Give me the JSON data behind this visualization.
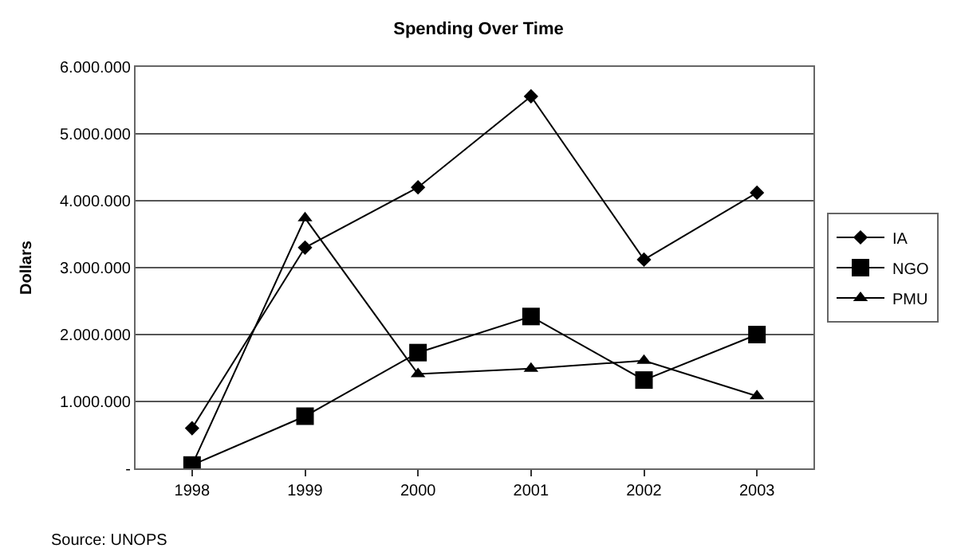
{
  "chart_data": {
    "type": "line",
    "title": "Spending Over Time",
    "ylabel": "Dollars",
    "categories": [
      "1998",
      "1999",
      "2000",
      "2001",
      "2002",
      "2003"
    ],
    "series": [
      {
        "name": "IA",
        "color": "#000000",
        "marker": "diamond",
        "values": [
          600000,
          3300000,
          4200000,
          5560000,
          3120000,
          4120000
        ]
      },
      {
        "name": "NGO",
        "color": "#000000",
        "marker": "square",
        "values": [
          50000,
          780000,
          1730000,
          2270000,
          1320000,
          2000000
        ]
      },
      {
        "name": "PMU",
        "color": "#000000",
        "marker": "triangle",
        "values": [
          50000,
          3740000,
          1410000,
          1490000,
          1610000,
          1080000
        ]
      }
    ],
    "ylim": [
      0,
      6000000
    ],
    "yticks": [
      {
        "value": 0,
        "label": "-"
      },
      {
        "value": 1000000,
        "label": "1.000.000"
      },
      {
        "value": 2000000,
        "label": "2.000.000"
      },
      {
        "value": 3000000,
        "label": "3.000.000"
      },
      {
        "value": 4000000,
        "label": "4.000.000"
      },
      {
        "value": 5000000,
        "label": "5.000.000"
      },
      {
        "value": 6000000,
        "label": "6.000.000"
      }
    ],
    "grid": "y",
    "legend": "right",
    "line_style": "solid",
    "annotations": [
      "Source: UNOPS"
    ]
  }
}
